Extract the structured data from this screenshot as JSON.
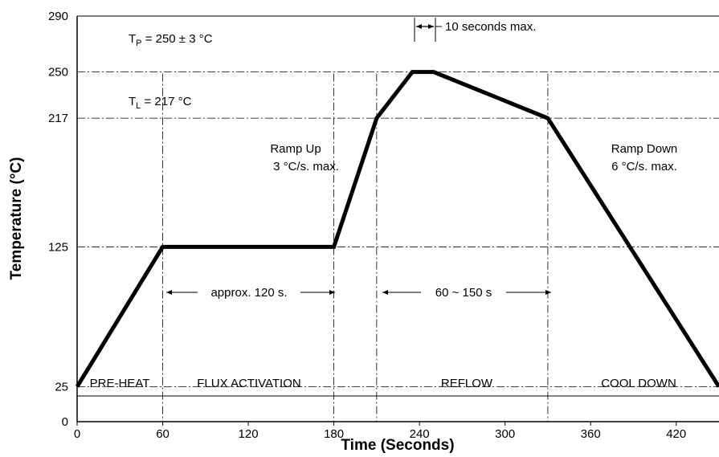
{
  "chart_data": {
    "type": "line",
    "title": "",
    "xlabel": "Time (Seconds)",
    "ylabel": "Temperature (°C)",
    "xlim": [
      0,
      450
    ],
    "ylim": [
      0,
      290
    ],
    "x_ticks": [
      0,
      60,
      120,
      180,
      240,
      300,
      360,
      420
    ],
    "y_ticks": [
      0,
      25,
      125,
      217,
      250,
      290
    ],
    "grid": false,
    "series": [
      {
        "x": [
          0,
          60,
          180,
          210,
          235,
          250,
          330,
          450
        ],
        "y": [
          25,
          125,
          125,
          217,
          250,
          250,
          217,
          25
        ]
      }
    ],
    "reference_lines": {
      "horizontal": [
        25,
        125,
        217,
        250
      ],
      "vertical": [
        60,
        180,
        210,
        330
      ]
    },
    "annotations": {
      "tp_main": "T",
      "tp_sub": "P",
      "tp_rest": " = 250 ± 3 °C",
      "tl_main": "T",
      "tl_sub": "L",
      "tl_rest": " = 217 °C",
      "peak_time": "10 seconds max.",
      "ramp_up_line1": "Ramp Up",
      "ramp_up_line2": "3 °C/s. max.",
      "ramp_down_line1": "Ramp Down",
      "ramp_down_line2": "6 °C/s. max.",
      "soak_time": "approx. 120 s.",
      "reflow_time": "60 ~ 150 s"
    },
    "zones": [
      "PRE-HEAT",
      "FLUX ACTIVATION",
      "REFLOW",
      "COOL DOWN"
    ]
  }
}
